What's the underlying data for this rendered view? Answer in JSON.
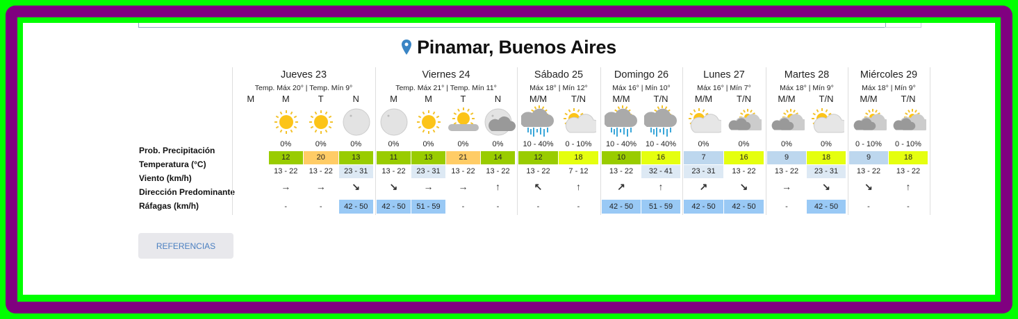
{
  "location": {
    "icon": "map-pin-icon",
    "name": "Pinamar, Buenos Aires",
    "pin_color": "#3a85c5"
  },
  "row_labels": {
    "precip": "Prob. Precipitación",
    "temp": "Temperatura (°C)",
    "wind": "Viento (km/h)",
    "direction": "Dirección Predominante",
    "gusts": "Ráfagas (km/h)"
  },
  "colors": {
    "green": "#99cc00",
    "orange": "#ffcc66",
    "yellow": "#e5ff0f",
    "blue": "#bdd7ee",
    "wind_bg": "#dde9f4",
    "gust_bg": "#99c9f5"
  },
  "days": [
    {
      "name": "Jueves 23",
      "temps": "Temp. Máx 20° | Temp. Mín 9°",
      "periods": [
        {
          "label": "M",
          "empty": true
        },
        {
          "label": "M",
          "icon": "sun-icon",
          "precip": "0%",
          "temp": "12",
          "temp_color": "green",
          "wind": "13 - 22",
          "wind_hl": false,
          "dir": "→",
          "gust": "-"
        },
        {
          "label": "T",
          "icon": "sun-icon",
          "precip": "0%",
          "temp": "20",
          "temp_color": "orange",
          "wind": "13 - 22",
          "wind_hl": false,
          "dir": "→",
          "gust": "-"
        },
        {
          "label": "N",
          "icon": "moon-icon",
          "precip": "0%",
          "temp": "13",
          "temp_color": "green",
          "wind": "23 - 31",
          "wind_hl": true,
          "dir": "↘",
          "gust": "42 - 50"
        }
      ]
    },
    {
      "name": "Viernes 24",
      "temps": "Temp. Máx 21° | Temp. Mín 11°",
      "periods": [
        {
          "label": "M",
          "icon": "moon-icon",
          "precip": "0%",
          "temp": "11",
          "temp_color": "green",
          "wind": "13 - 22",
          "wind_hl": false,
          "dir": "↘",
          "gust": "42 - 50"
        },
        {
          "label": "M",
          "icon": "sun-icon",
          "precip": "0%",
          "temp": "13",
          "temp_color": "green",
          "wind": "23 - 31",
          "wind_hl": true,
          "dir": "→",
          "gust": "51 - 59"
        },
        {
          "label": "T",
          "icon": "sun-behind-cloud-icon",
          "precip": "0%",
          "temp": "21",
          "temp_color": "orange",
          "wind": "13 - 22",
          "wind_hl": false,
          "dir": "→",
          "gust": "-"
        },
        {
          "label": "N",
          "icon": "moon-cloud-icon",
          "precip": "0%",
          "temp": "14",
          "temp_color": "green",
          "wind": "13 - 22",
          "wind_hl": false,
          "dir": "↑",
          "gust": "-"
        }
      ]
    },
    {
      "name": "Sábado 25",
      "temps": "Máx 18° | Mín 12°",
      "periods": [
        {
          "label": "M/M",
          "icon": "rain-icon",
          "precip": "10 - 40%",
          "temp": "12",
          "temp_color": "green",
          "wind": "13 - 22",
          "wind_hl": false,
          "dir": "↖",
          "gust": "-"
        },
        {
          "label": "T/N",
          "icon": "partly-cloudy-icon",
          "precip": "0 - 10%",
          "temp": "18",
          "temp_color": "yellow",
          "wind": "7 - 12",
          "wind_hl": false,
          "dir": "↑",
          "gust": "-"
        }
      ]
    },
    {
      "name": "Domingo 26",
      "temps": "Máx 16° | Mín 10°",
      "periods": [
        {
          "label": "M/M",
          "icon": "rain-icon",
          "precip": "10 - 40%",
          "temp": "10",
          "temp_color": "green",
          "wind": "13 - 22",
          "wind_hl": false,
          "dir": "↗",
          "gust": "42 - 50"
        },
        {
          "label": "T/N",
          "icon": "rain-icon",
          "precip": "10 - 40%",
          "temp": "16",
          "temp_color": "yellow",
          "wind": "32 - 41",
          "wind_hl": true,
          "dir": "↑",
          "gust": "51 - 59"
        }
      ]
    },
    {
      "name": "Lunes 27",
      "temps": "Máx 16° | Mín 7°",
      "periods": [
        {
          "label": "M/M",
          "icon": "partly-cloudy-icon",
          "precip": "0%",
          "temp": "7",
          "temp_color": "blue",
          "wind": "23 - 31",
          "wind_hl": true,
          "dir": "↗",
          "gust": "42 - 50"
        },
        {
          "label": "T/N",
          "icon": "cloudy-icon",
          "precip": "0%",
          "temp": "16",
          "temp_color": "yellow",
          "wind": "13 - 22",
          "wind_hl": false,
          "dir": "↘",
          "gust": "42 - 50"
        }
      ]
    },
    {
      "name": "Martes 28",
      "temps": "Máx 18° | Mín 9°",
      "periods": [
        {
          "label": "M/M",
          "icon": "cloudy-icon",
          "precip": "0%",
          "temp": "9",
          "temp_color": "blue",
          "wind": "13 - 22",
          "wind_hl": false,
          "dir": "→",
          "gust": "-"
        },
        {
          "label": "T/N",
          "icon": "partly-cloudy-icon",
          "precip": "0%",
          "temp": "18",
          "temp_color": "yellow",
          "wind": "23 - 31",
          "wind_hl": true,
          "dir": "↘",
          "gust": "42 - 50"
        }
      ]
    },
    {
      "name": "Miércoles 29",
      "temps": "Máx 18° | Mín 9°",
      "periods": [
        {
          "label": "M/M",
          "icon": "cloudy-icon",
          "precip": "0 - 10%",
          "temp": "9",
          "temp_color": "blue",
          "wind": "13 - 22",
          "wind_hl": false,
          "dir": "↘",
          "gust": "-"
        },
        {
          "label": "T/N",
          "icon": "cloudy-icon",
          "precip": "0 - 10%",
          "temp": "18",
          "temp_color": "yellow",
          "wind": "13 - 22",
          "wind_hl": false,
          "dir": "↑",
          "gust": "-"
        }
      ]
    }
  ],
  "references_button": "REFERENCIAS"
}
